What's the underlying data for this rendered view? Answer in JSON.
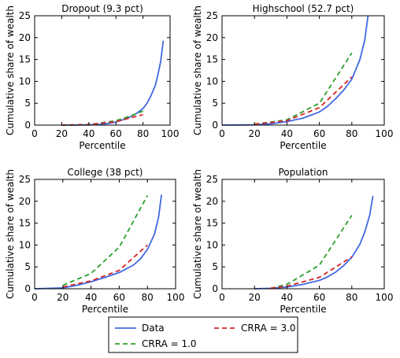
{
  "chart_data": {
    "type": "line",
    "colors": {
      "Data": "#4169e1",
      "CRRA = 1.0": "#2ca02c",
      "CRRA = 3.0": "#d62728"
    },
    "legend": {
      "placement": "bottom-center",
      "entries": [
        {
          "label": "Data",
          "style": "solid",
          "color": "#4169e1"
        },
        {
          "label": "CRRA = 3.0",
          "style": "dashed",
          "color": "#d62728"
        },
        {
          "label": "CRRA = 1.0",
          "style": "dashed",
          "color": "#2ca02c"
        }
      ]
    },
    "panels": [
      {
        "title": "Dropout (9.3 pct)",
        "xlabel": "Percentile",
        "ylabel": "Cumulative share of wealth",
        "xlim": [
          0,
          100
        ],
        "ylim": [
          0,
          25
        ],
        "xticks": [
          "0",
          "20",
          "40",
          "60",
          "80",
          "100"
        ],
        "yticks": [
          "0",
          "5",
          "10",
          "15",
          "20",
          "25"
        ],
        "series": [
          {
            "name": "Data",
            "x": [
              20,
              30,
              40,
              45,
              50,
              55,
              60,
              65,
              70,
              75,
              80,
              83,
              86,
              89,
              91,
              93,
              95
            ],
            "y": [
              0,
              0,
              0.05,
              0.1,
              0.2,
              0.4,
              0.7,
              1.2,
              1.8,
              2.6,
              3.8,
              5,
              6.8,
              9,
              11.5,
              14.5,
              19.3
            ]
          },
          {
            "name": "CRRA = 1.0",
            "x": [
              20,
              40,
              60,
              70,
              80
            ],
            "y": [
              0,
              0.1,
              1.0,
              2.0,
              3.2
            ]
          },
          {
            "name": "CRRA = 3.0",
            "x": [
              20,
              40,
              60,
              70,
              80
            ],
            "y": [
              0,
              0.1,
              0.8,
              1.6,
              2.4
            ]
          }
        ]
      },
      {
        "title": "Highschool (52.7 pct)",
        "xlabel": "Percentile",
        "ylabel": "Cumulative share of wealth",
        "xlim": [
          0,
          100
        ],
        "ylim": [
          0,
          25
        ],
        "xticks": [
          "0",
          "20",
          "40",
          "60",
          "80",
          "100"
        ],
        "yticks": [
          "0",
          "5",
          "10",
          "15",
          "20",
          "25"
        ],
        "series": [
          {
            "name": "Data",
            "x": [
              0,
              20,
              30,
              40,
              50,
              60,
              65,
              70,
              75,
              80,
              85,
              88,
              90
            ],
            "y": [
              0,
              0.05,
              0.3,
              0.8,
              1.6,
              3.0,
              4.3,
              6.0,
              8.0,
              10.5,
              15.0,
              19.5,
              25.0
            ]
          },
          {
            "name": "CRRA = 1.0",
            "x": [
              20,
              40,
              60,
              80
            ],
            "y": [
              0.2,
              1.2,
              5.0,
              16.5
            ]
          },
          {
            "name": "CRRA = 3.0",
            "x": [
              20,
              40,
              60,
              80
            ],
            "y": [
              0.2,
              1.0,
              4.0,
              11.0
            ]
          }
        ]
      },
      {
        "title": "College (38 pct)",
        "xlabel": "Percentile",
        "ylabel": "Cumulative share of wealth",
        "xlim": [
          0,
          100
        ],
        "ylim": [
          0,
          25
        ],
        "xticks": [
          "0",
          "20",
          "40",
          "60",
          "80",
          "100"
        ],
        "yticks": [
          "0",
          "5",
          "10",
          "15",
          "20",
          "25"
        ],
        "series": [
          {
            "name": "Data",
            "x": [
              0,
              20,
              30,
              40,
              50,
              60,
              70,
              75,
              80,
              85,
              88,
              90
            ],
            "y": [
              0,
              0.2,
              0.8,
              1.6,
              2.6,
              3.7,
              5.4,
              6.8,
              9.0,
              12.5,
              16.5,
              21.5
            ]
          },
          {
            "name": "CRRA = 1.0",
            "x": [
              20,
              40,
              60,
              80
            ],
            "y": [
              0.8,
              3.5,
              9.5,
              21.3
            ]
          },
          {
            "name": "CRRA = 3.0",
            "x": [
              20,
              40,
              60,
              80
            ],
            "y": [
              0.4,
              1.8,
              4.2,
              10.0
            ]
          }
        ]
      },
      {
        "title": "Population",
        "xlabel": "Percentile",
        "ylabel": "Cumulative share of wealth",
        "xlim": [
          0,
          100
        ],
        "ylim": [
          0,
          25
        ],
        "xticks": [
          "0",
          "20",
          "40",
          "60",
          "80",
          "100"
        ],
        "yticks": [
          "0",
          "5",
          "10",
          "15",
          "20",
          "25"
        ],
        "series": [
          {
            "name": "Data",
            "x": [
              20,
              30,
              40,
              50,
              60,
              65,
              70,
              75,
              80,
              85,
              88,
              91,
              93
            ],
            "y": [
              0,
              0.1,
              0.4,
              1.0,
              1.9,
              2.7,
              3.8,
              5.3,
              7.2,
              10.2,
              13.0,
              16.8,
              21.2
            ]
          },
          {
            "name": "CRRA = 1.0",
            "x": [
              30,
              40,
              60,
              80
            ],
            "y": [
              0.1,
              1.0,
              5.4,
              16.8
            ]
          },
          {
            "name": "CRRA = 3.0",
            "x": [
              30,
              40,
              60,
              80
            ],
            "y": [
              0.1,
              0.6,
              2.6,
              7.3
            ]
          }
        ]
      }
    ]
  }
}
